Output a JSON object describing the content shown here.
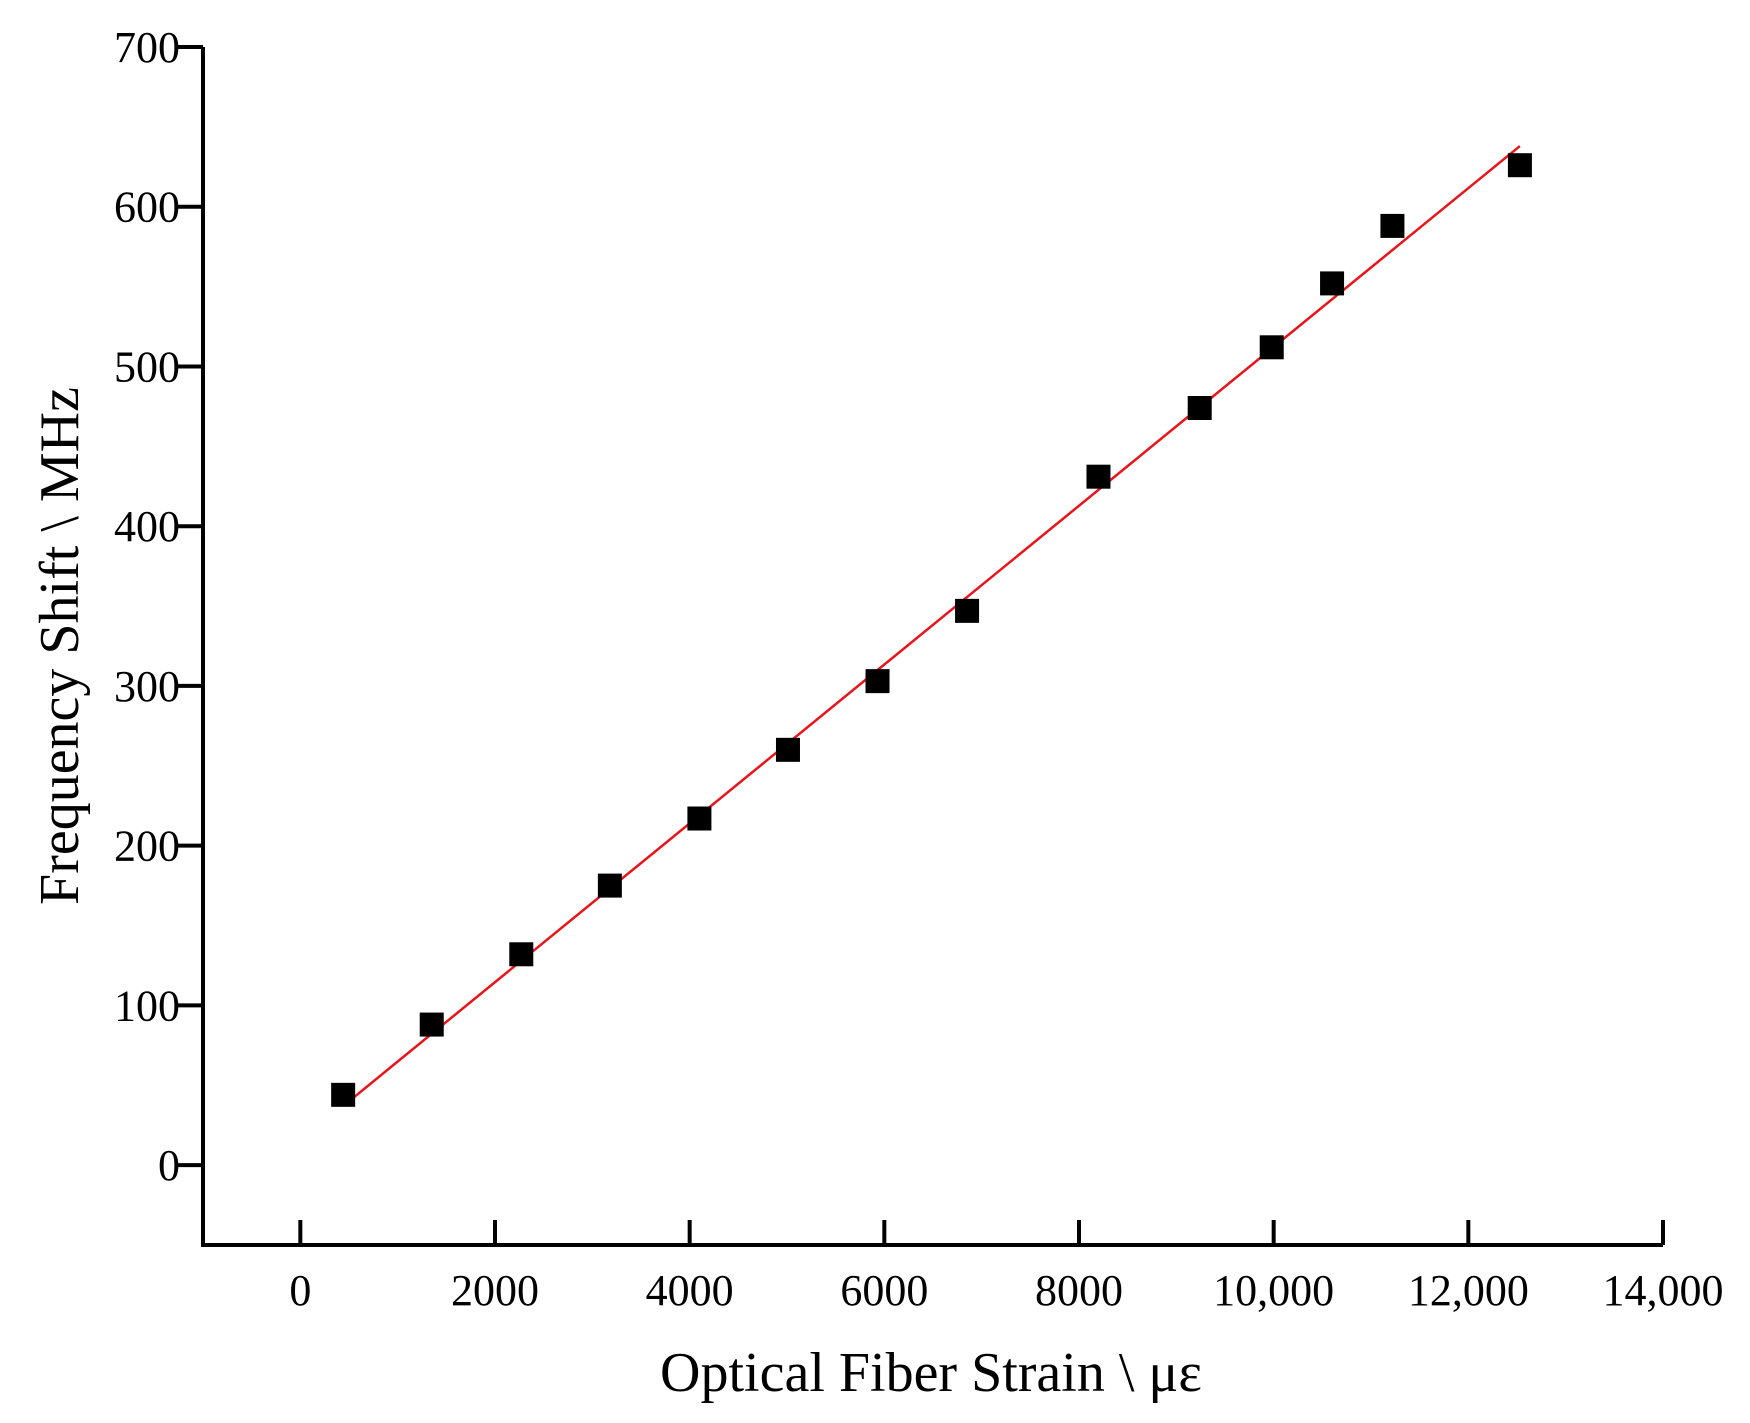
{
  "chart_data": {
    "type": "scatter",
    "title": "",
    "xlabel": "Optical Fiber Strain \\  με",
    "ylabel": "Frequency Shift \\ MHz",
    "xlim": [
      -1000,
      14000
    ],
    "ylim": [
      -50,
      700
    ],
    "x_ticks": [
      0,
      2000,
      4000,
      6000,
      8000,
      10000,
      12000,
      14000
    ],
    "x_tick_labels": [
      "0",
      "2000",
      "4000",
      "6000",
      "8000",
      "10,000",
      "12,000",
      "14,000"
    ],
    "y_ticks": [
      0,
      100,
      200,
      300,
      400,
      500,
      600,
      700
    ],
    "y_tick_labels": [
      "0",
      "100",
      "200",
      "300",
      "400",
      "500",
      "600",
      "700"
    ],
    "grid": false,
    "legend": "none",
    "series": [
      {
        "marker": "square",
        "color": "#000000",
        "points": [
          {
            "x": 440,
            "y": 44
          },
          {
            "x": 1350,
            "y": 88
          },
          {
            "x": 2270,
            "y": 132
          },
          {
            "x": 3180,
            "y": 175
          },
          {
            "x": 4100,
            "y": 217
          },
          {
            "x": 5010,
            "y": 260
          },
          {
            "x": 5930,
            "y": 303
          },
          {
            "x": 6850,
            "y": 347
          },
          {
            "x": 8200,
            "y": 431
          },
          {
            "x": 9240,
            "y": 474
          },
          {
            "x": 9980,
            "y": 512
          },
          {
            "x": 10600,
            "y": 552
          },
          {
            "x": 11220,
            "y": 588
          },
          {
            "x": 12530,
            "y": 626
          }
        ]
      },
      {
        "type": "line",
        "color": "#e8141a",
        "points": [
          {
            "x": 440,
            "y": 37
          },
          {
            "x": 12530,
            "y": 638
          }
        ]
      }
    ]
  }
}
